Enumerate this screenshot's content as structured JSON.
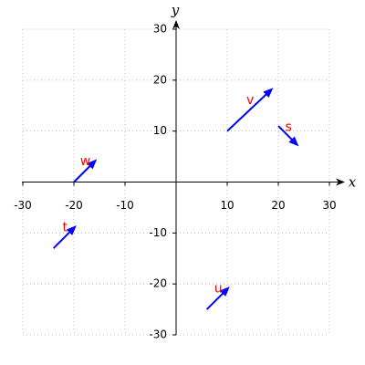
{
  "chart_data": {
    "type": "vector",
    "xlabel": "x",
    "ylabel": "y",
    "xlim": [
      -30,
      30
    ],
    "ylim": [
      -30,
      30
    ],
    "xticks": [
      -30,
      -20,
      -10,
      10,
      20,
      30
    ],
    "yticks": [
      -30,
      -20,
      -10,
      10,
      20,
      30
    ],
    "grid": true,
    "color": "#0000ff",
    "label_color": "#ff0000",
    "vectors": [
      {
        "name": "v",
        "x0": 10,
        "y0": 10,
        "x1": 19,
        "y1": 18.5
      },
      {
        "name": "s",
        "x0": 20,
        "y0": 11,
        "x1": 24,
        "y1": 7
      },
      {
        "name": "w",
        "x0": -20,
        "y0": 0,
        "x1": -15.5,
        "y1": 4.5
      },
      {
        "name": "t",
        "x0": -24,
        "y0": -13,
        "x1": -19.5,
        "y1": -8.5
      },
      {
        "name": "u",
        "x0": 6,
        "y0": -25,
        "x1": 10.5,
        "y1": -20.5
      }
    ]
  }
}
